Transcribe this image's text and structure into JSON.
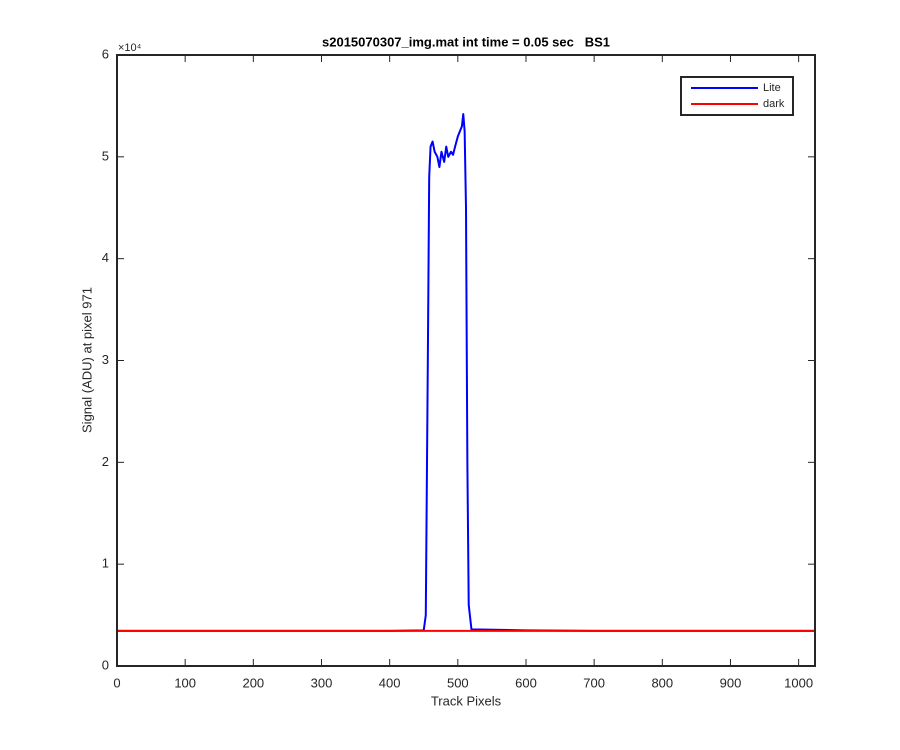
{
  "chart_data": {
    "type": "line",
    "title": "s2015070307_img.mat int time = 0.05 sec   BS1",
    "x_label": "Track Pixels",
    "y_label": "Signal (ADU) at pixel 971",
    "y_exponent_label": "×10⁴",
    "x": [
      0,
      100,
      200,
      300,
      400,
      450,
      453,
      456,
      458,
      460,
      463,
      466,
      470,
      473,
      476,
      480,
      483,
      486,
      490,
      493,
      496,
      500,
      503,
      506,
      508,
      510,
      512,
      514,
      516,
      520,
      600,
      700,
      800,
      900,
      1024
    ],
    "series": [
      {
        "name": "Lite",
        "color": "#0000ff",
        "values": [
          3450,
          3450,
          3450,
          3450,
          3450,
          3500,
          5000,
          30000,
          48000,
          51000,
          51500,
          50500,
          50000,
          49000,
          50500,
          49500,
          51000,
          50000,
          50500,
          50200,
          51000,
          52000,
          52500,
          53000,
          54200,
          52500,
          45000,
          20000,
          6000,
          3600,
          3500,
          3450,
          3450,
          3450,
          3450
        ]
      },
      {
        "name": "dark",
        "color": "#ff0000",
        "values": [
          3450,
          3450,
          3450,
          3450,
          3450,
          3450,
          3450,
          3450,
          3450,
          3450,
          3450,
          3450,
          3450,
          3450,
          3450,
          3450,
          3450,
          3450,
          3450,
          3450,
          3450,
          3450,
          3450,
          3450,
          3450,
          3450,
          3450,
          3450,
          3450,
          3450,
          3450,
          3450,
          3450,
          3450,
          3450
        ]
      }
    ],
    "xlim": [
      0,
      1024
    ],
    "xticks": [
      0,
      100,
      200,
      300,
      400,
      500,
      600,
      700,
      800,
      900,
      1000
    ],
    "ylim": [
      0,
      60000
    ],
    "yticks": [
      {
        "value": 0,
        "label": "0"
      },
      {
        "value": 10000,
        "label": "1"
      },
      {
        "value": 20000,
        "label": "2"
      },
      {
        "value": 30000,
        "label": "3"
      },
      {
        "value": 40000,
        "label": "4"
      },
      {
        "value": 50000,
        "label": "5"
      },
      {
        "value": 60000,
        "label": "6"
      }
    ],
    "legend_position": "upper-right",
    "grid": false
  }
}
